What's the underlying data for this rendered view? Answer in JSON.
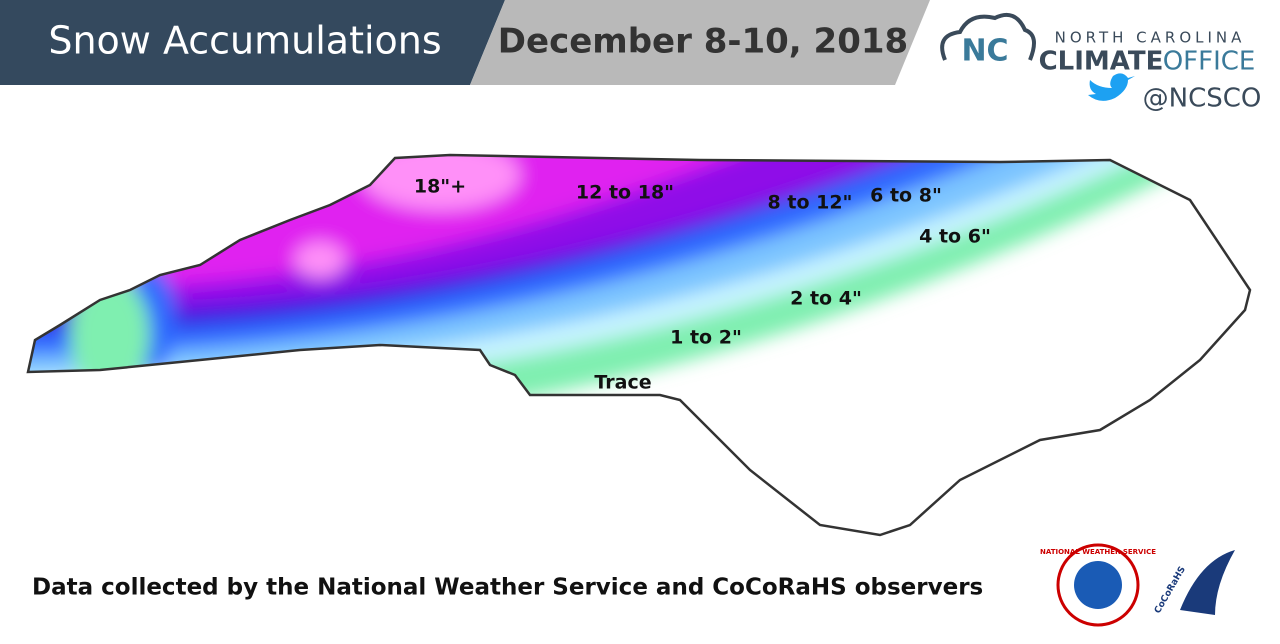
{
  "header": {
    "title": "Snow Accumulations",
    "date": "December 8-10, 2018"
  },
  "logo": {
    "line1": "NORTH CAROLINA",
    "climate": "CLIMATE",
    "office": "OFFICE",
    "handle": "@NCSCO"
  },
  "map": {
    "labels": [
      "18\"+",
      "12 to 18\"",
      "8 to 12\"",
      "6 to 8\"",
      "4 to 6\"",
      "2 to 4\"",
      "1 to 2\"",
      "Trace"
    ]
  },
  "footer": {
    "text": "Data collected by the National Weather Service and CoCoRaHS observers",
    "nws": "NATIONAL WEATHER SERVICE",
    "cocorahs": "CoCoRaHS"
  }
}
